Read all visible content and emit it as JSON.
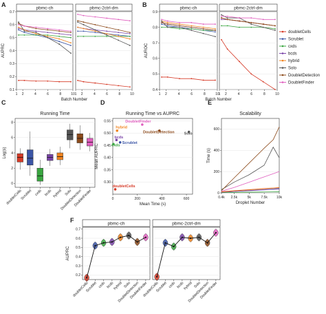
{
  "panel_letters": [
    "A",
    "B",
    "C",
    "D",
    "E",
    "F"
  ],
  "colors": {
    "doubletCells": "#d63a27",
    "Scrublet": "#3b55a6",
    "cxds": "#3aa640",
    "bcds": "#7a44a8",
    "hybrid": "#f0831e",
    "Solo": "#555555",
    "DoubletDetection": "#8c4a1b",
    "DoubletFinder": "#e05fbf"
  },
  "legend": {
    "placement": "right",
    "entries": [
      "doubletCells",
      "Scrublet",
      "cxds",
      "bcds",
      "hybrid",
      "Solo",
      "DoubletDetection",
      "DoubletFinder"
    ]
  },
  "chart_data": [
    {
      "id": "A",
      "type": "line",
      "ylabel": "AUPRC",
      "xlabel": "Batch Number",
      "ylim": [
        0.1,
        0.7
      ],
      "yticks": [
        "0.1",
        "0.2",
        "0.3",
        "0.4",
        "0.5",
        "0.6",
        "0.7"
      ],
      "xlim": [
        1,
        10
      ],
      "xticks": [
        "2",
        "4",
        "6",
        "8",
        "10"
      ],
      "facets": [
        {
          "title": "pbmc-ch",
          "x": [
            1,
            2,
            4,
            6,
            8,
            10
          ],
          "series": [
            {
              "name": "doubletCells",
              "values": [
                0.17,
                0.17,
                0.165,
                0.165,
                0.16,
                0.16
              ]
            },
            {
              "name": "Scrublet",
              "values": [
                0.56,
                0.54,
                0.52,
                0.5,
                0.47,
                0.44
              ]
            },
            {
              "name": "cxds",
              "values": [
                0.52,
                0.52,
                0.52,
                0.52,
                0.51,
                0.5
              ]
            },
            {
              "name": "bcds",
              "values": [
                0.57,
                0.56,
                0.55,
                0.54,
                0.53,
                0.52
              ]
            },
            {
              "name": "hybrid",
              "values": [
                0.58,
                0.56,
                0.53,
                0.51,
                0.49,
                0.46
              ]
            },
            {
              "name": "Solo",
              "values": [
                0.62,
                0.55,
                0.54,
                0.5,
                0.45,
                0.38
              ]
            },
            {
              "name": "DoubletDetection",
              "values": [
                0.61,
                0.59,
                0.57,
                0.56,
                0.55,
                0.54
              ]
            },
            {
              "name": "DoubletFinder",
              "values": [
                0.6,
                0.59,
                0.58,
                0.57,
                0.56,
                0.55
              ]
            }
          ]
        },
        {
          "title": "pbmc-2ctrl-dm",
          "x": [
            1,
            2,
            4,
            6,
            8,
            10
          ],
          "series": [
            {
              "name": "doubletCells",
              "values": [
                0.17,
                0.16,
                0.15,
                0.14,
                0.13,
                0.12
              ]
            },
            {
              "name": "Scrublet",
              "values": [
                0.55,
                0.55,
                0.54,
                0.53,
                0.52,
                0.51
              ]
            },
            {
              "name": "cxds",
              "values": [
                0.51,
                0.51,
                0.51,
                0.51,
                0.51,
                0.51
              ]
            },
            {
              "name": "bcds",
              "values": [
                0.58,
                0.57,
                0.56,
                0.55,
                0.54,
                0.53
              ]
            },
            {
              "name": "hybrid",
              "values": [
                0.58,
                0.57,
                0.55,
                0.53,
                0.51,
                0.49
              ]
            },
            {
              "name": "Solo",
              "values": [
                0.62,
                0.6,
                0.56,
                0.52,
                0.48,
                0.44
              ]
            },
            {
              "name": "DoubletDetection",
              "values": [
                0.63,
                0.62,
                0.6,
                0.58,
                0.56,
                0.54
              ]
            },
            {
              "name": "DoubletFinder",
              "values": [
                0.68,
                0.67,
                0.66,
                0.65,
                0.64,
                0.63
              ]
            }
          ]
        }
      ]
    },
    {
      "id": "B",
      "type": "line",
      "ylabel": "AUROC",
      "xlabel": "Batch Number",
      "ylim": [
        0.4,
        0.9
      ],
      "yticks": [
        "0.4",
        "0.5",
        "0.6",
        "0.7",
        "0.8",
        "0.9"
      ],
      "xlim": [
        1,
        10
      ],
      "xticks": [
        "2",
        "4",
        "6",
        "8",
        "10"
      ],
      "facets": [
        {
          "title": "pbmc-ch",
          "x": [
            1,
            2,
            4,
            6,
            8,
            10
          ],
          "series": [
            {
              "name": "doubletCells",
              "values": [
                0.48,
                0.48,
                0.47,
                0.47,
                0.46,
                0.46
              ]
            },
            {
              "name": "Scrublet",
              "values": [
                0.82,
                0.81,
                0.8,
                0.79,
                0.78,
                0.77
              ]
            },
            {
              "name": "cxds",
              "values": [
                0.8,
                0.8,
                0.79,
                0.79,
                0.78,
                0.78
              ]
            },
            {
              "name": "bcds",
              "values": [
                0.83,
                0.82,
                0.81,
                0.8,
                0.79,
                0.78
              ]
            },
            {
              "name": "hybrid",
              "values": [
                0.84,
                0.83,
                0.82,
                0.81,
                0.8,
                0.79
              ]
            },
            {
              "name": "Solo",
              "values": [
                0.84,
                0.8,
                0.8,
                0.78,
                0.76,
                0.74
              ]
            },
            {
              "name": "DoubletDetection",
              "values": [
                0.83,
                0.82,
                0.81,
                0.8,
                0.79,
                0.78
              ]
            },
            {
              "name": "DoubletFinder",
              "values": [
                0.85,
                0.84,
                0.83,
                0.83,
                0.82,
                0.82
              ]
            }
          ]
        },
        {
          "title": "pbmc-2ctrl-dm",
          "x": [
            1,
            2,
            4,
            6,
            8,
            10
          ],
          "series": [
            {
              "name": "doubletCells",
              "values": [
                0.72,
                0.66,
                0.58,
                0.5,
                0.45,
                0.4
              ]
            },
            {
              "name": "Scrublet",
              "values": [
                0.86,
                0.85,
                0.84,
                0.83,
                0.82,
                0.81
              ]
            },
            {
              "name": "cxds",
              "values": [
                0.81,
                0.81,
                0.8,
                0.8,
                0.8,
                0.79
              ]
            },
            {
              "name": "bcds",
              "values": [
                0.85,
                0.85,
                0.84,
                0.83,
                0.82,
                0.81
              ]
            },
            {
              "name": "hybrid",
              "values": [
                0.86,
                0.85,
                0.84,
                0.83,
                0.82,
                0.81
              ]
            },
            {
              "name": "Solo",
              "values": [
                0.88,
                0.86,
                0.86,
                0.82,
                0.8,
                0.78
              ]
            },
            {
              "name": "DoubletDetection",
              "values": [
                0.86,
                0.85,
                0.84,
                0.83,
                0.82,
                0.81
              ]
            },
            {
              "name": "DoubletFinder",
              "values": [
                0.87,
                0.87,
                0.86,
                0.86,
                0.85,
                0.85
              ]
            }
          ]
        }
      ]
    },
    {
      "id": "C",
      "type": "box",
      "title": "Running Time",
      "ylabel": "Log(s)",
      "ylim": [
        -0.5,
        8.5
      ],
      "yticks": [
        "0",
        "2",
        "4",
        "6",
        "8"
      ],
      "categories": [
        "doubletCells",
        "Scrublet",
        "cxds",
        "bcds",
        "hybrid",
        "Solo",
        "DoubletDetection",
        "DoubletFinder"
      ],
      "boxes": [
        {
          "min": 1.8,
          "q1": 2.8,
          "median": 3.4,
          "q3": 3.9,
          "max": 4.6
        },
        {
          "min": 1.0,
          "q1": 2.4,
          "median": 3.3,
          "q3": 4.4,
          "max": 6.8
        },
        {
          "min": -0.2,
          "q1": 0.3,
          "median": 1.0,
          "q3": 2.0,
          "max": 3.1
        },
        {
          "min": 2.3,
          "q1": 3.0,
          "median": 3.4,
          "q3": 3.8,
          "max": 4.5
        },
        {
          "min": 2.4,
          "q1": 3.1,
          "median": 3.5,
          "q3": 4.0,
          "max": 4.8
        },
        {
          "min": 4.6,
          "q1": 5.7,
          "median": 6.4,
          "q3": 7.0,
          "max": 7.8
        },
        {
          "min": 4.4,
          "q1": 5.3,
          "median": 5.9,
          "q3": 6.5,
          "max": 7.6
        },
        {
          "min": 4.2,
          "q1": 4.9,
          "median": 5.4,
          "q3": 5.9,
          "max": 6.6
        }
      ]
    },
    {
      "id": "D",
      "type": "scatter",
      "title": "Running Time vs AUPRC",
      "xlabel": "Mean Time (s)",
      "ylabel": "Mean AUPRC",
      "xlim": [
        0,
        650
      ],
      "ylim": [
        0.25,
        0.56
      ],
      "xticks": [
        "0",
        "200",
        "400",
        "600"
      ],
      "yticks": [
        "0.30",
        "0.35",
        "0.40",
        "0.45",
        "0.50",
        "0.55"
      ],
      "points": [
        {
          "name": "doubletCells",
          "x": 20,
          "y": 0.27
        },
        {
          "name": "Scrublet",
          "x": 60,
          "y": 0.462
        },
        {
          "name": "cxds",
          "x": 5,
          "y": 0.455
        },
        {
          "name": "bcds",
          "x": 30,
          "y": 0.472
        },
        {
          "name": "hybrid",
          "x": 35,
          "y": 0.51
        },
        {
          "name": "DoubletFinder",
          "x": 240,
          "y": 0.535
        },
        {
          "name": "DoubletDetection",
          "x": 380,
          "y": 0.51
        },
        {
          "name": "Solo",
          "x": 620,
          "y": 0.505
        }
      ]
    },
    {
      "id": "E",
      "type": "line",
      "title": "Scalability",
      "xlabel": "Droplet Number",
      "ylabel": "Time (s)",
      "xlim": [
        400,
        10000
      ],
      "ylim": [
        0,
        700
      ],
      "xticks": [
        "0.4k",
        "2.5k",
        "5k",
        "7.5k",
        "10k"
      ],
      "yticks": [
        "0",
        "200",
        "400",
        "600"
      ],
      "x": [
        400,
        2500,
        5000,
        7500,
        9000,
        10000
      ],
      "series": [
        {
          "name": "doubletCells",
          "values": [
            10,
            20,
            30,
            40,
            45,
            50
          ]
        },
        {
          "name": "Scrublet",
          "values": [
            5,
            12,
            22,
            30,
            36,
            40
          ]
        },
        {
          "name": "cxds",
          "values": [
            2,
            4,
            6,
            8,
            9,
            10
          ]
        },
        {
          "name": "bcds",
          "values": [
            5,
            12,
            20,
            28,
            33,
            36
          ]
        },
        {
          "name": "hybrid",
          "values": [
            8,
            18,
            28,
            38,
            44,
            48
          ]
        },
        {
          "name": "Solo",
          "values": [
            30,
            100,
            170,
            260,
            430,
            330
          ]
        },
        {
          "name": "DoubletDetection",
          "values": [
            20,
            140,
            280,
            420,
            500,
            620
          ]
        },
        {
          "name": "DoubletFinder",
          "values": [
            15,
            50,
            100,
            150,
            180,
            200
          ]
        }
      ]
    },
    {
      "id": "F",
      "type": "violin",
      "ylabel": "AUPRC",
      "ylim": [
        0.15,
        0.72
      ],
      "yticks": [
        "0.2",
        "0.3",
        "0.4",
        "0.5",
        "0.6",
        "0.7"
      ],
      "categories": [
        "doubletCells",
        "Scrublet",
        "cxds",
        "bcds",
        "hybrid",
        "Solo",
        "DoubletDetection",
        "DoubletFinder"
      ],
      "facets": [
        {
          "title": "pbmc-ch",
          "medians": [
            0.17,
            0.52,
            0.55,
            0.56,
            0.61,
            0.63,
            0.56,
            0.61
          ]
        },
        {
          "title": "pbmc-2ctrl-dm",
          "medians": [
            0.18,
            0.55,
            0.51,
            0.61,
            0.6,
            0.61,
            0.55,
            0.66
          ]
        }
      ]
    }
  ]
}
